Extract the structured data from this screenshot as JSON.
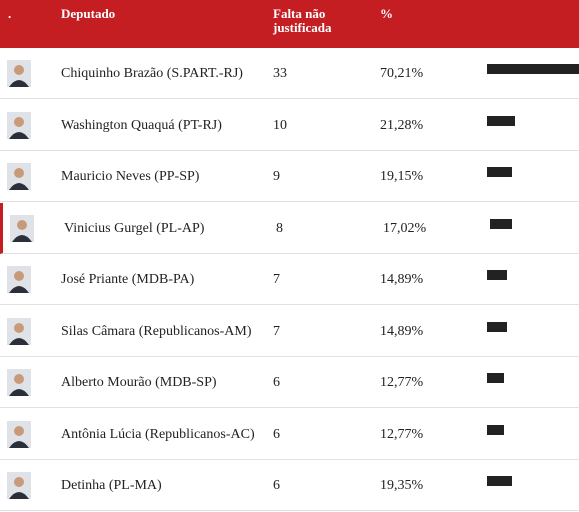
{
  "table": {
    "header": [
      ".",
      "Deputado",
      "Falta não justificada",
      "%"
    ],
    "rows": [
      {
        "name": "Chiquinho Brazão (S.PART.-RJ)",
        "faltas": 33,
        "pct": {
          "value": 70.21,
          "label": "70,21%"
        }
      },
      {
        "name": "Washington Quaquá (PT-RJ)",
        "faltas": 10,
        "pct": {
          "value": 21.28,
          "label": "21,28%"
        }
      },
      {
        "name": "Mauricio Neves (PP-SP)",
        "faltas": 9,
        "pct": {
          "value": 19.15,
          "label": "19,15%"
        }
      },
      {
        "name": "Vinicius Gurgel (PL-AP)",
        "faltas": 8,
        "pct": {
          "value": 17.02,
          "label": "17,02%"
        }
      },
      {
        "name": "José Priante (MDB-PA)",
        "faltas": 7,
        "pct": {
          "value": 14.89,
          "label": "14,89%"
        }
      },
      {
        "name": "Silas Câmara (Republicanos-AM)",
        "faltas": 7,
        "pct": {
          "value": 14.89,
          "label": "14,89%"
        }
      },
      {
        "name": "Alberto Mourão (MDB-SP)",
        "faltas": 6,
        "pct": {
          "value": 12.77,
          "label": "12,77%"
        }
      },
      {
        "name": "Antônia Lúcia (Republicanos-AC)",
        "faltas": 6,
        "pct": {
          "value": 12.77,
          "label": "12,77%"
        }
      },
      {
        "name": "Detinha (PL-MA)",
        "faltas": 6,
        "pct": {
          "value": 19.35,
          "label": "19,35%"
        }
      }
    ],
    "highlight_row": 3,
    "bar_color": "#222222",
    "header_color": "#c41e23"
  }
}
